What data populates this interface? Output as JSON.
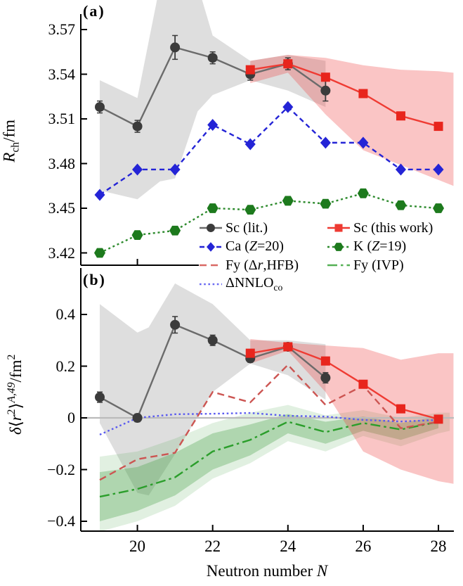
{
  "panel_a_letter": "(a)",
  "panel_b_letter": "(b)",
  "chart_data": [
    {
      "id": "a",
      "type": "line",
      "panel_label": "(a)",
      "ylabel_segments": [
        {
          "t": "R",
          "i": 1
        },
        {
          "t": "ch",
          "s": "sub"
        },
        {
          "t": "/fm"
        }
      ],
      "ylabel_text": "Rch/fm",
      "xlim": [
        19,
        28
      ],
      "ylim": [
        3.415,
        3.585
      ],
      "yticks": [
        3.57,
        3.54,
        3.51,
        3.48,
        3.45,
        3.42
      ],
      "ytick_labels": [
        "3.57",
        "3.54",
        "3.51",
        "3.48",
        "3.45",
        "3.42"
      ],
      "xticks": [
        20,
        22,
        24,
        26,
        28
      ],
      "xtick_labels": [
        "",
        "",
        "",
        "",
        ""
      ],
      "grid": false,
      "bands": [
        {
          "for": "Sc (lit.)",
          "color": "#999999",
          "opacity": 0.32,
          "x": [
            19,
            20,
            20.6,
            21,
            21.6,
            22,
            23,
            24,
            25
          ],
          "upper": [
            3.536,
            3.524,
            3.6,
            3.6,
            3.6,
            3.566,
            3.549,
            3.553,
            3.549
          ],
          "lower": [
            3.462,
            3.456,
            3.468,
            3.47,
            3.515,
            3.526,
            3.536,
            3.529,
            3.518
          ]
        },
        {
          "for": "Sc (this work)",
          "color": "#ee4040",
          "opacity": 0.3,
          "x": [
            23,
            24,
            25,
            26,
            27,
            28,
            28.4
          ],
          "upper": [
            3.549,
            3.553,
            3.551,
            3.546,
            3.543,
            3.542,
            3.541
          ],
          "lower": [
            3.534,
            3.541,
            3.513,
            3.489,
            3.479,
            3.469,
            3.465
          ]
        }
      ],
      "series": [
        {
          "name": "K (Z=19)",
          "marker": "hexagon",
          "color": "#1d7a1d",
          "line_color": "#2e8b2e",
          "style": "short-dot",
          "x": [
            19,
            20,
            21,
            22,
            23,
            24,
            25,
            26,
            27,
            28
          ],
          "y": [
            3.42,
            3.432,
            3.435,
            3.45,
            3.449,
            3.455,
            3.453,
            3.46,
            3.452,
            3.45
          ]
        },
        {
          "name": "Ca (Z=20)",
          "marker": "diamond",
          "color": "#2424d6",
          "line_color": "#2424d6",
          "style": "short-dash",
          "x": [
            19,
            20,
            21,
            22,
            23,
            24,
            25,
            26,
            27,
            28
          ],
          "y": [
            3.459,
            3.476,
            3.476,
            3.506,
            3.493,
            3.518,
            3.494,
            3.494,
            3.476,
            3.476
          ]
        },
        {
          "name": "Sc (lit.)",
          "marker": "circle",
          "color": "#3b3b3b",
          "line_color": "#6b6b6b",
          "style": "solid",
          "x": [
            19,
            20,
            21,
            22,
            23,
            24,
            25
          ],
          "y": [
            3.518,
            3.505,
            3.558,
            3.551,
            3.54,
            3.547,
            3.529
          ],
          "yerr": [
            0.004,
            0.004,
            0.008,
            0.004,
            0.004,
            0.004,
            0.007
          ]
        },
        {
          "name": "Sc (this work)",
          "marker": "square",
          "color": "#e8251d",
          "line_color": "#ef3b33",
          "style": "solid",
          "x": [
            23,
            24,
            25,
            26,
            27,
            28
          ],
          "y": [
            3.543,
            3.547,
            3.538,
            3.527,
            3.512,
            3.505
          ]
        }
      ]
    },
    {
      "id": "b",
      "type": "line",
      "panel_label": "(b)",
      "ylabel_segments": [
        {
          "t": "δ",
          "i": 1
        },
        {
          "t": "⟨"
        },
        {
          "t": "r",
          "i": 1
        },
        {
          "t": "2",
          "s": "sup"
        },
        {
          "t": "⟩"
        },
        {
          "t": "A,49",
          "s": "sup",
          "i": 1
        },
        {
          "t": "/fm"
        },
        {
          "t": "2",
          "s": "sup"
        }
      ],
      "ylabel_text": "δ⟨r2⟩A,49/fm2",
      "xlabel_segments": [
        {
          "t": "Neutron number "
        },
        {
          "t": "N",
          "i": 1
        }
      ],
      "xlabel_text": "Neutron number N",
      "xlim": [
        19,
        28
      ],
      "ylim": [
        -0.46,
        0.56
      ],
      "yticks": [
        0.4,
        0.2,
        0,
        -0.2,
        -0.4
      ],
      "ytick_labels": [
        "0.4",
        "0.2",
        "0",
        "−0.2",
        "−0.4"
      ],
      "xticks": [
        20,
        22,
        24,
        26,
        28
      ],
      "xtick_labels": [
        "20",
        "22",
        "24",
        "26",
        "28"
      ],
      "zero_line": true,
      "zero_line_color": "#bbbbbb",
      "grid": false,
      "bands": [
        {
          "for": "Sc (lit.)",
          "color": "#999999",
          "opacity": 0.32,
          "x": [
            19,
            20,
            20.3,
            21,
            22,
            23,
            24,
            25
          ],
          "upper": [
            0.44,
            0.33,
            0.35,
            0.52,
            0.44,
            0.3,
            0.3,
            0.285
          ],
          "lower": [
            -0.02,
            -0.29,
            -0.3,
            -0.14,
            0.1,
            0.21,
            0.165,
            0.07
          ]
        },
        {
          "for": "Fy (IVP) outer",
          "color": "#44a044",
          "opacity": 0.16,
          "x": [
            19,
            20,
            21,
            22,
            23,
            24,
            25,
            26,
            27,
            28,
            28.3
          ],
          "upper": [
            -0.15,
            -0.13,
            -0.08,
            -0.02,
            0.02,
            0.05,
            0.01,
            0.03,
            0.0,
            0.02,
            0.02
          ],
          "lower": [
            -0.44,
            -0.4,
            -0.34,
            -0.235,
            -0.175,
            -0.09,
            -0.13,
            -0.07,
            -0.11,
            -0.06,
            -0.05
          ]
        },
        {
          "for": "Fy (IVP) inner",
          "color": "#3a9a3a",
          "opacity": 0.3,
          "x": [
            19,
            20,
            21,
            22,
            23,
            24,
            25,
            26,
            27,
            28
          ],
          "upper": [
            -0.21,
            -0.19,
            -0.135,
            -0.06,
            -0.025,
            0.015,
            -0.015,
            0.005,
            -0.02,
            0.005
          ],
          "lower": [
            -0.4,
            -0.36,
            -0.3,
            -0.2,
            -0.145,
            -0.06,
            -0.1,
            -0.05,
            -0.085,
            -0.04
          ]
        },
        {
          "for": "Sc (this work)",
          "color": "#ee4040",
          "opacity": 0.3,
          "x": [
            23,
            24,
            25,
            26,
            27,
            28,
            28.4
          ],
          "upper": [
            0.305,
            0.29,
            0.28,
            0.27,
            0.225,
            0.25,
            0.25
          ],
          "lower": [
            0.21,
            0.26,
            0.1,
            -0.13,
            -0.2,
            -0.245,
            -0.255
          ]
        }
      ],
      "series": [
        {
          "name": "ΔNNLOco",
          "marker": "none",
          "color": "#5a5af0",
          "line_color": "#5a5af0",
          "style": "dot",
          "x": [
            19,
            20,
            21,
            22,
            23,
            24,
            25,
            26,
            27,
            28
          ],
          "y": [
            -0.065,
            0.0,
            0.014,
            0.016,
            0.019,
            0.008,
            0.005,
            -0.008,
            -0.014,
            -0.008
          ]
        },
        {
          "name": "Fy (IVP)",
          "marker": "none",
          "color": "#2b9e2b",
          "line_color": "#2b9e2b",
          "style": "dash-dot",
          "x": [
            19,
            20,
            21,
            22,
            23,
            24,
            25,
            26,
            27,
            28
          ],
          "y": [
            -0.305,
            -0.275,
            -0.23,
            -0.13,
            -0.085,
            -0.015,
            -0.055,
            -0.02,
            -0.045,
            -0.015
          ]
        },
        {
          "name": "Fy (Δr,HFB)",
          "marker": "none",
          "color": "#cc5552",
          "line_color": "#cc5552",
          "style": "long-dash",
          "x": [
            19,
            20,
            21,
            22,
            23,
            24,
            25,
            26,
            27,
            28
          ],
          "y": [
            -0.24,
            -0.16,
            -0.135,
            0.1,
            0.06,
            0.205,
            0.05,
            0.125,
            -0.04,
            -0.015
          ]
        },
        {
          "name": "Sc (lit.)",
          "marker": "circle",
          "color": "#3b3b3b",
          "line_color": "#6b6b6b",
          "style": "solid",
          "x": [
            19,
            20,
            21,
            22,
            23,
            24,
            25
          ],
          "y": [
            0.08,
            0.0,
            0.36,
            0.3,
            0.23,
            0.275,
            0.155
          ],
          "yerr": [
            0.02,
            0.015,
            0.032,
            0.02,
            0.015,
            0.015,
            0.02
          ]
        },
        {
          "name": "Sc (this work)",
          "marker": "square",
          "color": "#e8251d",
          "line_color": "#ef3b33",
          "style": "solid",
          "x": [
            23,
            24,
            25,
            26,
            27,
            28
          ],
          "y": [
            0.25,
            0.275,
            0.22,
            0.13,
            0.035,
            -0.005
          ]
        }
      ]
    }
  ],
  "legend": {
    "items": [
      {
        "label_segments": [
          {
            "t": "Sc (lit.)"
          }
        ],
        "marker": "circle",
        "color": "#3b3b3b",
        "line_color": "#6b6b6b",
        "style": "solid"
      },
      {
        "label_segments": [
          {
            "t": "Sc (this work)"
          }
        ],
        "marker": "square",
        "color": "#ee3a32",
        "line_color": "#ee3a32",
        "style": "solid"
      },
      {
        "label_segments": [
          {
            "t": "Ca ("
          },
          {
            "t": "Z",
            "i": 1
          },
          {
            "t": "=20)"
          }
        ],
        "marker": "diamond",
        "color": "#2424d6",
        "line_color": "#2424d6",
        "style": "short-dash"
      },
      {
        "label_segments": [
          {
            "t": "K ("
          },
          {
            "t": "Z",
            "i": 1
          },
          {
            "t": "=19)"
          }
        ],
        "marker": "hexagon",
        "color": "#1d7a1d",
        "line_color": "#2e8b2e",
        "style": "short-dot"
      },
      {
        "label_segments": [
          {
            "t": "Fy (Δ"
          },
          {
            "t": "r",
            "i": 1
          },
          {
            "t": ",HFB)"
          }
        ],
        "marker": "none",
        "color": "#d96a66",
        "line_color": "#d96a66",
        "style": "long-dash"
      },
      {
        "label_segments": [
          {
            "t": "Fy (IVP)"
          }
        ],
        "marker": "none",
        "color": "#55b055",
        "line_color": "#55b055",
        "style": "dash-dot"
      },
      {
        "label_segments": [
          {
            "t": "ΔNNLO"
          },
          {
            "t": "co",
            "s": "sub"
          }
        ],
        "marker": "none",
        "color": "#6a6af2",
        "line_color": "#6a6af2",
        "style": "dot"
      }
    ]
  }
}
